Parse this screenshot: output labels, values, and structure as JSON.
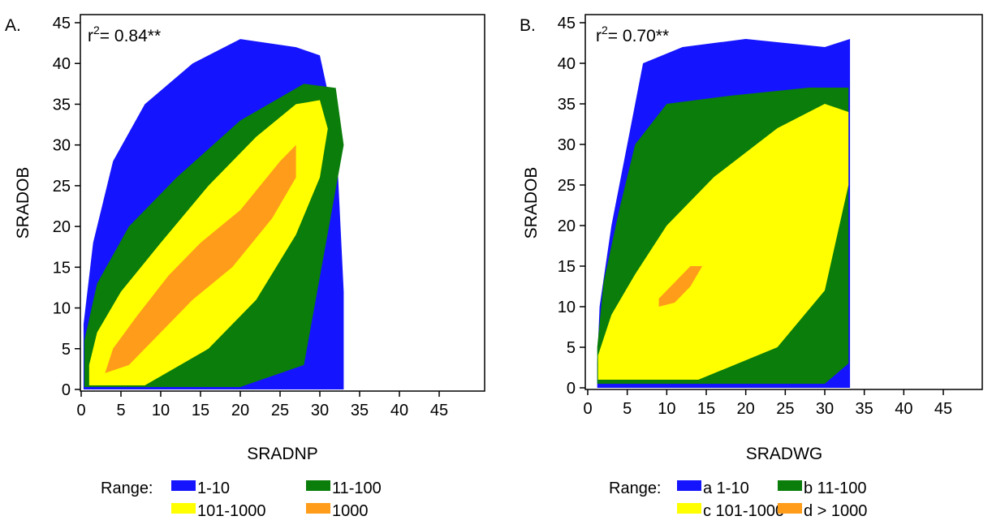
{
  "chart_data": [
    {
      "type": "heatmap",
      "panel_label": "A.",
      "xlabel": "SRADNP",
      "ylabel": "SRADOB",
      "xlim": [
        0,
        45
      ],
      "ylim": [
        0,
        45
      ],
      "x_ticks": [
        "0",
        "5",
        "10",
        "15",
        "20",
        "25",
        "30",
        "35",
        "40",
        "45"
      ],
      "y_ticks": [
        "0",
        "5",
        "10",
        "15",
        "20",
        "25",
        "30",
        "35",
        "40",
        "45"
      ],
      "annotation": {
        "base": "r",
        "sup": "2",
        "rest": "= 0.84**"
      },
      "legend": {
        "title": "Range:",
        "entries": [
          {
            "label": "1-10",
            "color": "#1414ff"
          },
          {
            "label": "11-100",
            "color": "#0a7d0a"
          },
          {
            "label": "101-1000",
            "color": "#ffff00"
          },
          {
            "label": "1000",
            "color": "#ff9c1a"
          }
        ]
      },
      "density_bands": [
        {
          "class": "1-10",
          "color": "#1414ff",
          "outline": [
            [
              0.3,
              0
            ],
            [
              33,
              0
            ],
            [
              33,
              12
            ],
            [
              32,
              32
            ],
            [
              30,
              41
            ],
            [
              27,
              42
            ],
            [
              20,
              43
            ],
            [
              14,
              40
            ],
            [
              8,
              35
            ],
            [
              4,
              28
            ],
            [
              1.5,
              18
            ],
            [
              0.3,
              8
            ]
          ]
        },
        {
          "class": "11-100",
          "color": "#0a7d0a",
          "outline": [
            [
              0.4,
              0.3
            ],
            [
              20,
              0.3
            ],
            [
              28,
              3
            ],
            [
              33,
              30
            ],
            [
              32,
              37
            ],
            [
              28,
              37.5
            ],
            [
              20,
              33
            ],
            [
              12,
              26
            ],
            [
              6,
              20
            ],
            [
              2,
              13
            ],
            [
              0.4,
              6
            ]
          ]
        },
        {
          "class": "101-1000",
          "color": "#ffff00",
          "outline": [
            [
              1,
              0.5
            ],
            [
              8,
              0.5
            ],
            [
              16,
              5
            ],
            [
              22,
              11
            ],
            [
              27,
              19
            ],
            [
              30,
              26
            ],
            [
              31,
              32
            ],
            [
              30,
              35.5
            ],
            [
              27,
              35
            ],
            [
              22,
              31
            ],
            [
              16,
              25
            ],
            [
              10,
              18
            ],
            [
              5,
              12
            ],
            [
              2,
              7
            ],
            [
              1,
              3
            ]
          ]
        },
        {
          "class": "1000",
          "color": "#ff9c1a",
          "outline": [
            [
              3,
              2
            ],
            [
              6,
              3
            ],
            [
              10,
              7
            ],
            [
              14,
              11
            ],
            [
              19,
              15
            ],
            [
              24,
              21
            ],
            [
              27,
              26
            ],
            [
              27,
              30
            ],
            [
              25,
              28
            ],
            [
              20,
              22
            ],
            [
              15,
              18
            ],
            [
              11,
              14
            ],
            [
              7,
              9
            ],
            [
              4,
              5
            ]
          ]
        }
      ]
    },
    {
      "type": "heatmap",
      "panel_label": "B.",
      "xlabel": "SRADWG",
      "ylabel": "SRADOB",
      "xlim": [
        0,
        45
      ],
      "ylim": [
        0,
        45
      ],
      "x_ticks": [
        "0",
        "5",
        "10",
        "15",
        "20",
        "25",
        "30",
        "35",
        "40",
        "45"
      ],
      "y_ticks": [
        "0",
        "5",
        "10",
        "15",
        "20",
        "25",
        "30",
        "35",
        "40",
        "45"
      ],
      "annotation": {
        "base": "r",
        "sup": "2",
        "rest": "= 0.70**"
      },
      "legend": {
        "title": "Range:",
        "entries": [
          {
            "label": "a 1-10",
            "color": "#1414ff"
          },
          {
            "label": "b 11-100",
            "color": "#0a7d0a"
          },
          {
            "label": "c 101-1000",
            "color": "#ffff00"
          },
          {
            "label": "d > 1000",
            "color": "#ff9c1a"
          }
        ]
      },
      "density_bands": [
        {
          "class": "1-10",
          "color": "#1414ff",
          "outline": [
            [
              1.2,
              0
            ],
            [
              33.2,
              0
            ],
            [
              33.2,
              43
            ],
            [
              30,
              42
            ],
            [
              20,
              43
            ],
            [
              12,
              42
            ],
            [
              7,
              40
            ],
            [
              5,
              30
            ],
            [
              3,
              20
            ],
            [
              1.5,
              10
            ],
            [
              1.2,
              3
            ]
          ]
        },
        {
          "class": "11-100",
          "color": "#0a7d0a",
          "outline": [
            [
              1.2,
              0.5
            ],
            [
              30,
              0.5
            ],
            [
              33,
              3
            ],
            [
              33,
              37
            ],
            [
              28,
              37
            ],
            [
              18,
              36
            ],
            [
              10,
              35
            ],
            [
              6,
              30
            ],
            [
              4,
              22
            ],
            [
              2,
              13
            ],
            [
              1.2,
              5
            ]
          ]
        },
        {
          "class": "101-1000",
          "color": "#ffff00",
          "outline": [
            [
              1.3,
              1
            ],
            [
              14,
              1
            ],
            [
              24,
              5
            ],
            [
              30,
              12
            ],
            [
              33,
              25
            ],
            [
              33,
              34
            ],
            [
              30,
              35
            ],
            [
              24,
              32
            ],
            [
              16,
              26
            ],
            [
              10,
              20
            ],
            [
              6,
              14
            ],
            [
              3,
              9
            ],
            [
              1.3,
              4
            ]
          ]
        },
        {
          "class": "d > 1000",
          "color": "#ff9c1a",
          "outline": [
            [
              9,
              10
            ],
            [
              11,
              10.5
            ],
            [
              13,
              12.5
            ],
            [
              14.5,
              15
            ],
            [
              13,
              15
            ],
            [
              11,
              13
            ],
            [
              9,
              11
            ]
          ]
        }
      ]
    }
  ]
}
